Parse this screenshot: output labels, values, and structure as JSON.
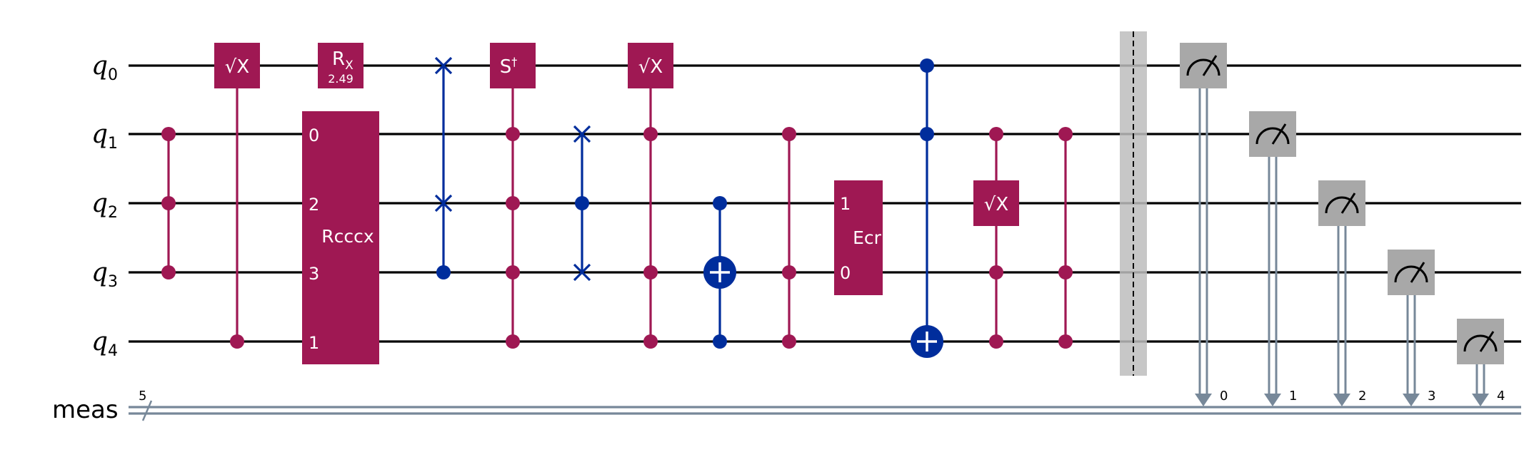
{
  "circuit": {
    "qubits": [
      {
        "name": "q",
        "index": "0"
      },
      {
        "name": "q",
        "index": "1"
      },
      {
        "name": "q",
        "index": "2"
      },
      {
        "name": "q",
        "index": "3"
      },
      {
        "name": "q",
        "index": "4"
      }
    ],
    "classical_register": {
      "name": "meas",
      "size": "5"
    },
    "colors": {
      "gate": "#9f1853",
      "blue": "#002d9c",
      "measure": "#a8a8a8",
      "classical": "#778899",
      "barrier": "#bdbdbd"
    },
    "gates": {
      "sx": "√X",
      "rx_label": "R",
      "rx_sub": "X",
      "rx_param": "2.49",
      "sdg": "S",
      "sdg_sup": "†",
      "rcccx": "Rcccx",
      "rcccx_pins": [
        "0",
        "2",
        "3",
        "1"
      ],
      "ecr": "Ecr",
      "ecr_pins": [
        "1",
        "0"
      ]
    },
    "measure_bits": [
      "0",
      "1",
      "2",
      "3",
      "4"
    ]
  }
}
